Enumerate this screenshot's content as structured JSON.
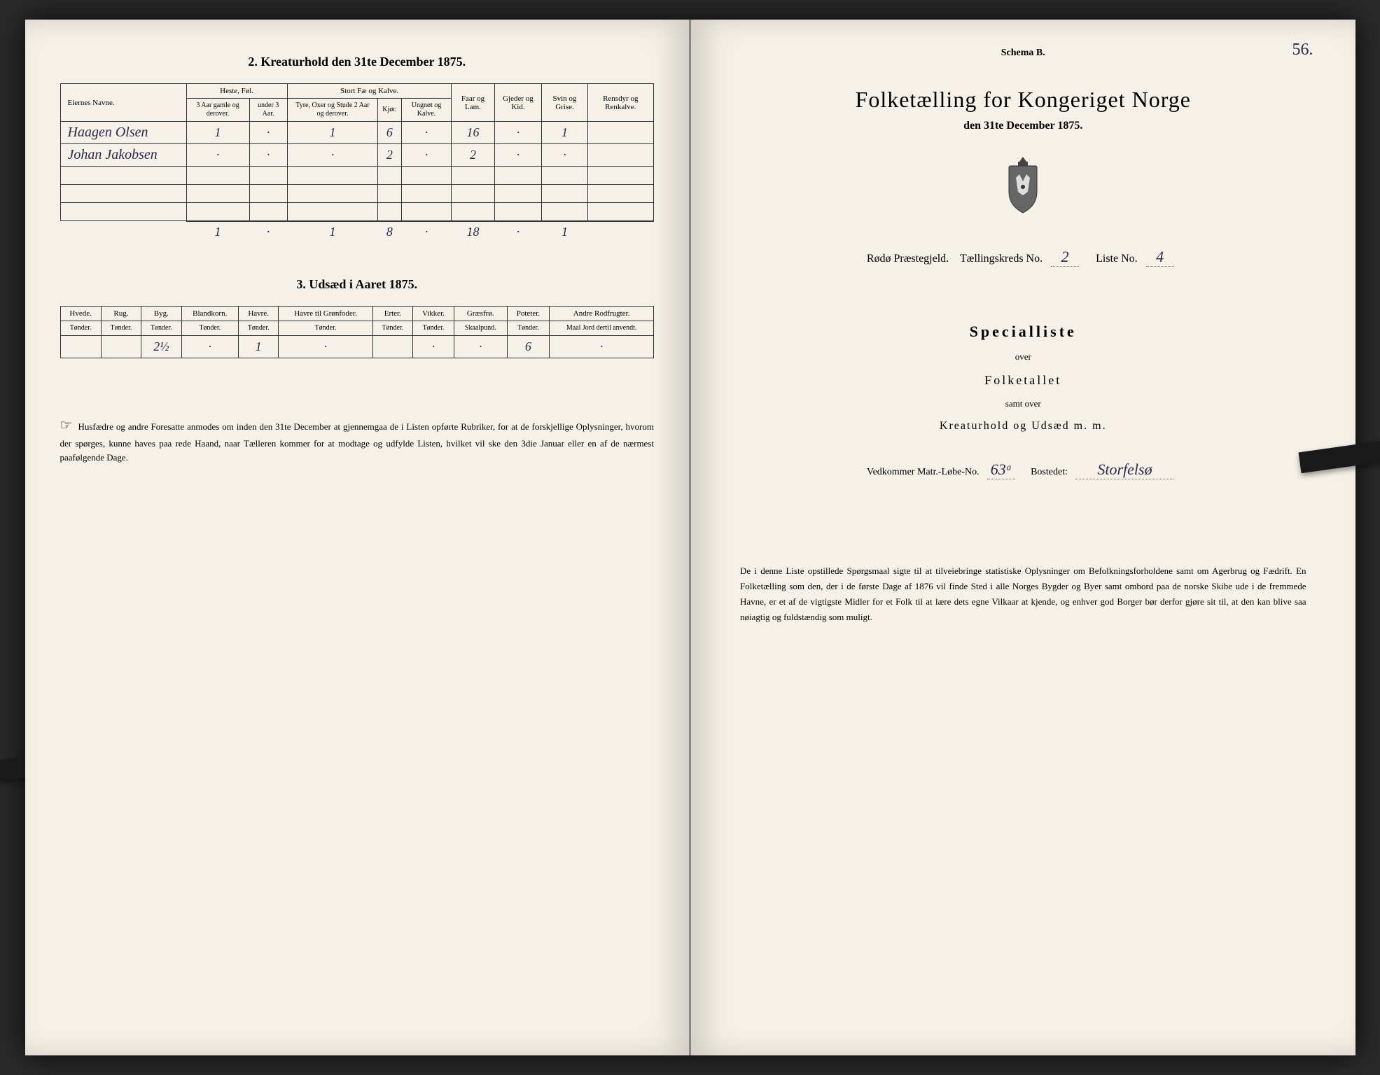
{
  "leftPage": {
    "section2": {
      "title": "2. Kreaturhold den 31te December 1875.",
      "headers": {
        "names": "Eiernes Navne.",
        "heste": "Heste, Føl.",
        "stortFae": "Stort Fæ og Kalve.",
        "faarLam": "Faar og Lam.",
        "gjederKid": "Gjeder og Kid.",
        "svinGrise": "Svin og Grise.",
        "rensdyr": "Rensdyr og Renkalve."
      },
      "subHeaders": {
        "heste3aar": "3 Aar gamle og derover.",
        "hesteUnder3": "under 3 Aar.",
        "tyreOxer": "Tyre, Oxer og Stude 2 Aar og derover.",
        "kjor": "Kjør.",
        "ungnot": "Ungnøt og Kalve."
      },
      "rows": [
        {
          "name": "Haagen Olsen",
          "v": [
            "1",
            "·",
            "1",
            "6",
            "·",
            "16",
            "·",
            "1",
            ""
          ]
        },
        {
          "name": "Johan Jakobsen",
          "v": [
            "·",
            "·",
            "·",
            "2",
            "·",
            "2",
            "·",
            "·",
            ""
          ]
        }
      ],
      "sums": [
        "1",
        "·",
        "1",
        "8",
        "·",
        "18",
        "·",
        "1",
        ""
      ]
    },
    "section3": {
      "title": "3. Udsæd i Aaret 1875.",
      "headers": [
        "Hvede.",
        "Rug.",
        "Byg.",
        "Blandkorn.",
        "Havre.",
        "Havre til Grønfoder.",
        "Erter.",
        "Vikker.",
        "Græsfrø.",
        "Poteter.",
        "Andre Rodfrugter."
      ],
      "units": [
        "Tønder.",
        "Tønder.",
        "Tønder.",
        "Tønder.",
        "Tønder.",
        "Tønder.",
        "Tønder.",
        "Tønder.",
        "Skaalpund.",
        "Tønder.",
        "Maal Jord dertil anvendt."
      ],
      "row": [
        "",
        "",
        "2½",
        "·",
        "1",
        "·",
        "",
        "·",
        "·",
        "6",
        "·"
      ]
    },
    "footer": "Husfædre og andre Foresatte anmodes om inden den 31te December at gjennemgaa de i Listen opførte Rubriker, for at de forskjellige Oplysninger, hvorom der spørges, kunne haves paa rede Haand, naar Tælleren kommer for at modtage og udfylde Listen, hvilket vil ske den 3die Januar eller en af de nærmest paafølgende Dage."
  },
  "rightPage": {
    "pageNumber": "56.",
    "schema": "Schema B.",
    "mainTitle": "Folketælling for Kongeriget Norge",
    "subDate": "den 31te December 1875.",
    "districtPrefix": "Rødø Præstegjeld.",
    "tkLabel": "Tællingskreds No.",
    "tkValue": "2",
    "listeLabel": "Liste No.",
    "listeValue": "4",
    "specialTitle": "Specialliste",
    "over1": "over",
    "folketallet": "Folketallet",
    "samtOver": "samt over",
    "kreaturLine": "Kreaturhold og Udsæd m. m.",
    "matrLabel": "Vedkommer Matr.-Løbe-No.",
    "matrValue": "63ᵃ",
    "bostedetLabel": "Bostedet:",
    "bostedetValue": "Storfelsø",
    "footer": "De i denne Liste opstillede Spørgsmaal sigte til at tilveiebringe statistiske Oplysninger om Befolkningsforholdene samt om Agerbrug og Fædrift. En Folketælling som den, der i de første Dage af 1876 vil finde Sted i alle Norges Bygder og Byer samt ombord paa de norske Skibe ude i de fremmede Havne, er et af de vigtigste Midler for et Folk til at lære dets egne Vilkaar at kjende, og enhver god Borger bør derfor gjøre sit til, at den kan blive saa nøiagtig og fuldstændig som muligt."
  },
  "colors": {
    "paper": "#f5f1e8",
    "ink": "#333333",
    "handwriting": "#2a2a4a",
    "binding": "#1a1a1a"
  }
}
